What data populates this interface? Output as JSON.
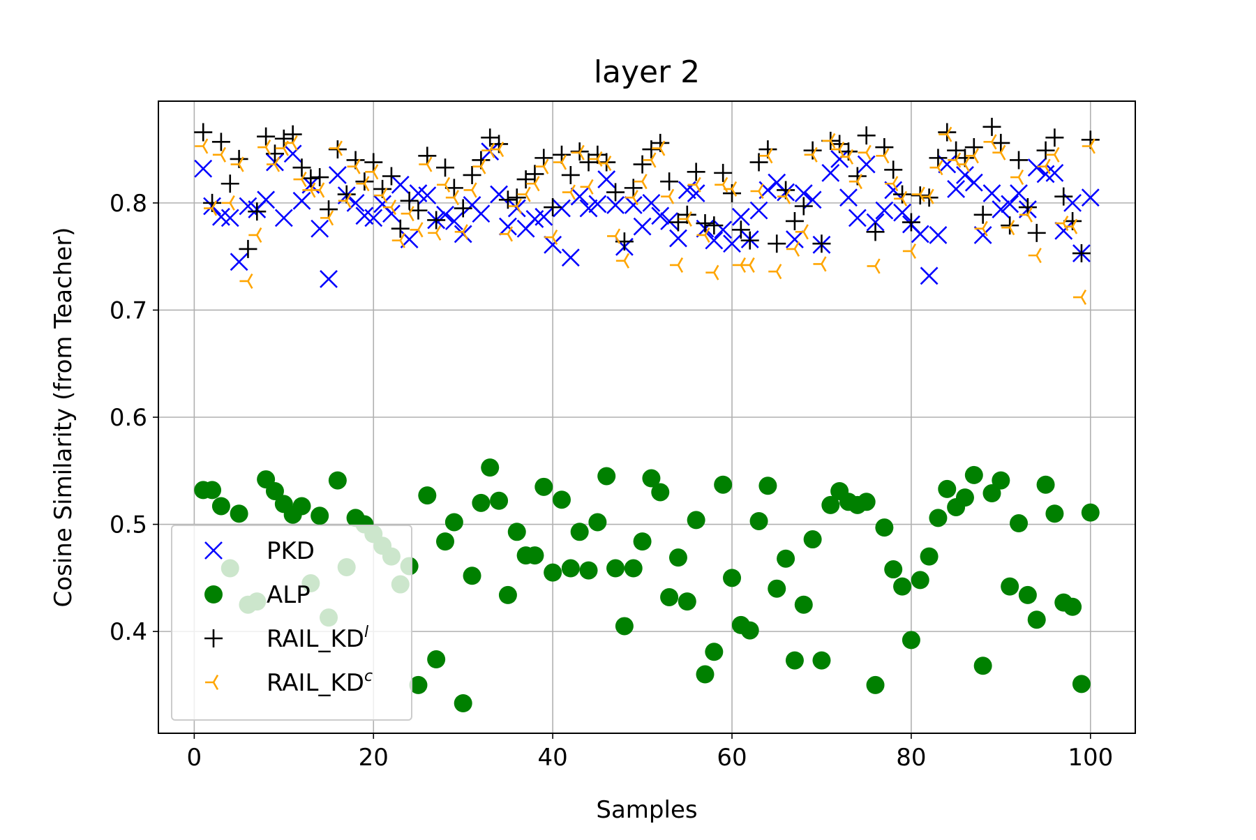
{
  "chart_data": {
    "type": "scatter",
    "title": "layer 2",
    "xlabel": "Samples",
    "ylabel": "Cosine Similarity (from Teacher)",
    "xlim": [
      -4,
      105
    ],
    "ylim": [
      0.305,
      0.895
    ],
    "xticks": [
      0,
      20,
      40,
      60,
      80,
      100
    ],
    "yticks": [
      0.4,
      0.5,
      0.6,
      0.7,
      0.8
    ],
    "xtick_labels": [
      "0",
      "20",
      "40",
      "60",
      "80",
      "100"
    ],
    "ytick_labels": [
      "0.4",
      "0.5",
      "0.6",
      "0.7",
      "0.8"
    ],
    "grid": true,
    "legend_position": "lower-left",
    "x": [
      1,
      2,
      3,
      4,
      5,
      6,
      7,
      8,
      9,
      10,
      11,
      12,
      13,
      14,
      15,
      16,
      17,
      18,
      19,
      20,
      21,
      22,
      23,
      24,
      25,
      26,
      27,
      28,
      29,
      30,
      31,
      32,
      33,
      34,
      35,
      36,
      37,
      38,
      39,
      40,
      41,
      42,
      43,
      44,
      45,
      46,
      47,
      48,
      49,
      50,
      51,
      52,
      53,
      54,
      55,
      56,
      57,
      58,
      59,
      60,
      61,
      62,
      63,
      64,
      65,
      66,
      67,
      68,
      69,
      70,
      71,
      72,
      73,
      74,
      75,
      76,
      77,
      78,
      79,
      80,
      81,
      82,
      83,
      84,
      85,
      86,
      87,
      88,
      89,
      90,
      91,
      92,
      93,
      94,
      95,
      96,
      97,
      98,
      99,
      100
    ],
    "series": [
      {
        "name": "PKD",
        "marker": "x",
        "color": "#0000ff",
        "values": [
          0.832,
          0.797,
          0.787,
          0.786,
          0.745,
          0.797,
          0.794,
          0.803,
          0.838,
          0.786,
          0.846,
          0.802,
          0.817,
          0.776,
          0.729,
          0.826,
          0.807,
          0.8,
          0.788,
          0.786,
          0.799,
          0.79,
          0.817,
          0.766,
          0.809,
          0.807,
          0.784,
          0.789,
          0.783,
          0.771,
          0.798,
          0.79,
          0.848,
          0.808,
          0.778,
          0.795,
          0.776,
          0.785,
          0.787,
          0.761,
          0.795,
          0.749,
          0.806,
          0.795,
          0.799,
          0.822,
          0.798,
          0.759,
          0.798,
          0.778,
          0.8,
          0.788,
          0.783,
          0.767,
          0.812,
          0.809,
          0.776,
          0.765,
          0.775,
          0.762,
          0.787,
          0.766,
          0.793,
          0.812,
          0.819,
          0.81,
          0.766,
          0.809,
          0.803,
          0.761,
          0.828,
          0.841,
          0.805,
          0.786,
          0.836,
          0.782,
          0.793,
          0.812,
          0.791,
          0.78,
          0.771,
          0.732,
          0.77,
          0.836,
          0.813,
          0.826,
          0.819,
          0.77,
          0.809,
          0.794,
          0.799,
          0.809,
          0.794,
          0.833,
          0.827,
          0.828,
          0.774,
          0.8,
          0.753,
          0.805
        ]
      },
      {
        "name": "ALP",
        "marker": "o",
        "color": "#008000",
        "values": [
          0.532,
          0.532,
          0.517,
          0.459,
          0.51,
          0.425,
          0.428,
          0.542,
          0.531,
          0.519,
          0.509,
          0.517,
          0.445,
          0.508,
          0.413,
          0.541,
          0.46,
          0.506,
          0.5,
          0.491,
          0.48,
          0.47,
          0.444,
          0.461,
          0.35,
          0.527,
          0.374,
          0.484,
          0.502,
          0.333,
          0.452,
          0.52,
          0.553,
          0.522,
          0.434,
          0.493,
          0.471,
          0.471,
          0.535,
          0.455,
          0.523,
          0.459,
          0.493,
          0.457,
          0.502,
          0.545,
          0.459,
          0.405,
          0.459,
          0.484,
          0.543,
          0.53,
          0.432,
          0.469,
          0.428,
          0.504,
          0.36,
          0.381,
          0.537,
          0.45,
          0.406,
          0.401,
          0.503,
          0.536,
          0.44,
          0.468,
          0.373,
          0.425,
          0.486,
          0.373,
          0.518,
          0.531,
          0.521,
          0.518,
          0.521,
          0.35,
          0.497,
          0.458,
          0.442,
          0.392,
          0.448,
          0.47,
          0.506,
          0.533,
          0.516,
          0.525,
          0.546,
          0.368,
          0.529,
          0.541,
          0.442,
          0.501,
          0.434,
          0.411,
          0.537,
          0.51,
          0.427,
          0.423,
          0.351,
          0.511
        ]
      },
      {
        "name": "RAIL_KD",
        "superscript": "l",
        "marker": "+",
        "color": "#000000",
        "values": [
          0.866,
          0.8,
          0.857,
          0.818,
          0.841,
          0.757,
          0.792,
          0.862,
          0.846,
          0.86,
          0.864,
          0.833,
          0.823,
          0.824,
          0.794,
          0.85,
          0.808,
          0.84,
          0.82,
          0.838,
          0.813,
          0.825,
          0.776,
          0.802,
          0.793,
          0.844,
          0.784,
          0.833,
          0.814,
          0.795,
          0.826,
          0.84,
          0.861,
          0.855,
          0.803,
          0.805,
          0.822,
          0.827,
          0.842,
          0.796,
          0.845,
          0.826,
          0.848,
          0.838,
          0.845,
          0.838,
          0.81,
          0.764,
          0.814,
          0.836,
          0.85,
          0.856,
          0.82,
          0.782,
          0.789,
          0.829,
          0.781,
          0.779,
          0.828,
          0.809,
          0.775,
          0.765,
          0.838,
          0.85,
          0.762,
          0.812,
          0.783,
          0.797,
          0.849,
          0.762,
          0.858,
          0.855,
          0.848,
          0.825,
          0.863,
          0.773,
          0.852,
          0.831,
          0.808,
          0.782,
          0.807,
          0.805,
          0.842,
          0.866,
          0.849,
          0.842,
          0.852,
          0.789,
          0.871,
          0.856,
          0.779,
          0.84,
          0.796,
          0.772,
          0.849,
          0.861,
          0.806,
          0.783,
          0.753,
          0.859
        ]
      },
      {
        "name": "RAIL_KD",
        "superscript": "c",
        "marker": "tri_left",
        "color": "#ffa500",
        "values": [
          0.853,
          0.795,
          0.845,
          0.8,
          0.836,
          0.727,
          0.77,
          0.852,
          0.836,
          0.851,
          0.856,
          0.822,
          0.812,
          0.812,
          0.786,
          0.851,
          0.802,
          0.834,
          0.818,
          0.829,
          0.807,
          0.796,
          0.765,
          0.79,
          0.775,
          0.836,
          0.772,
          0.817,
          0.805,
          0.773,
          0.812,
          0.834,
          0.849,
          0.85,
          0.771,
          0.797,
          0.808,
          0.818,
          0.834,
          0.768,
          0.838,
          0.81,
          0.847,
          0.815,
          0.841,
          0.837,
          0.769,
          0.746,
          0.805,
          0.82,
          0.84,
          0.851,
          0.806,
          0.742,
          0.785,
          0.817,
          0.77,
          0.735,
          0.817,
          0.813,
          0.742,
          0.742,
          0.811,
          0.844,
          0.736,
          0.806,
          0.757,
          0.773,
          0.845,
          0.743,
          0.858,
          0.85,
          0.843,
          0.82,
          0.847,
          0.741,
          0.844,
          0.818,
          0.804,
          0.755,
          0.808,
          0.806,
          0.833,
          0.864,
          0.84,
          0.836,
          0.844,
          0.776,
          0.857,
          0.847,
          0.777,
          0.824,
          0.789,
          0.751,
          0.834,
          0.845,
          0.781,
          0.778,
          0.712,
          0.853
        ]
      }
    ]
  }
}
